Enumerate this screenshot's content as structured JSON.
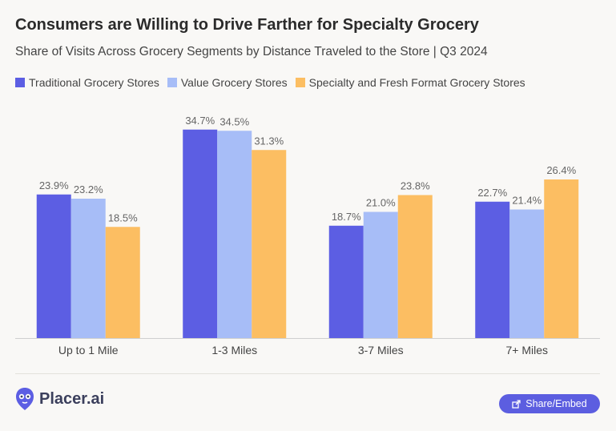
{
  "header": {
    "title": "Consumers are Willing to Drive Farther for Specialty Grocery",
    "subtitle": "Share of Visits Across Grocery Segments by Distance Traveled to the Store | Q3 2024"
  },
  "colors": {
    "traditional": "#5c5ee3",
    "value": "#a7bdf7",
    "specialty": "#fcbe62"
  },
  "chart_data": {
    "type": "bar",
    "title": "Consumers are Willing to Drive Farther for Specialty Grocery",
    "subtitle": "Share of Visits Across Grocery Segments by Distance Traveled to the Store | Q3 2024",
    "categories": [
      "Up to 1 Mile",
      "1-3 Miles",
      "3-7 Miles",
      "7+ Miles"
    ],
    "series": [
      {
        "name": "Traditional Grocery Stores",
        "values": [
          23.9,
          34.7,
          18.7,
          22.7
        ],
        "labels": [
          "23.9%",
          "34.7%",
          "18.7%",
          "22.7%"
        ]
      },
      {
        "name": "Value Grocery Stores",
        "values": [
          23.2,
          34.5,
          21.0,
          21.4
        ],
        "labels": [
          "23.2%",
          "34.5%",
          "21.0%",
          "21.4%"
        ]
      },
      {
        "name": "Specialty and Fresh Format Grocery Stores",
        "values": [
          18.5,
          31.3,
          23.8,
          26.4
        ],
        "labels": [
          "18.5%",
          "31.3%",
          "23.8%",
          "26.4%"
        ]
      }
    ],
    "ylim": [
      0,
      35
    ],
    "grid": false,
    "legend": "top-left"
  },
  "footer": {
    "brand": "Placer.ai",
    "share_label": "Share/Embed"
  }
}
